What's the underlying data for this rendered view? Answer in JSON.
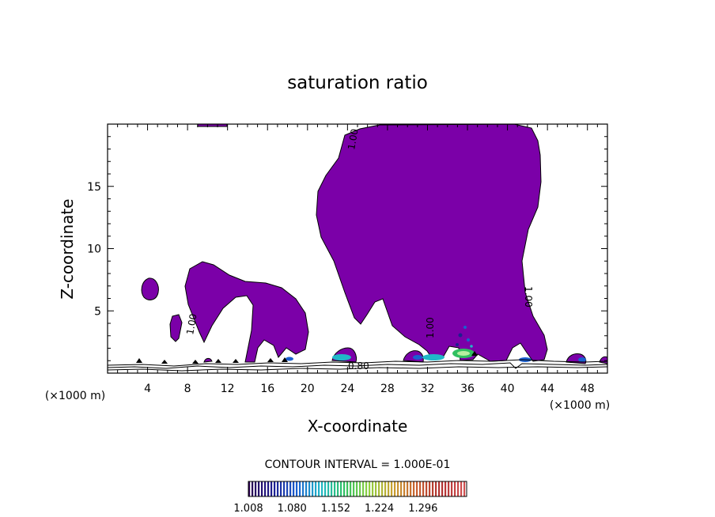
{
  "chart_data": {
    "type": "contour",
    "title": "saturation ratio",
    "xlabel": "X-coordinate",
    "ylabel": "Z-coordinate",
    "x_unit": "(×1000 m)",
    "y_unit": "(×1000 m)",
    "xlim": [
      0,
      50
    ],
    "ylim": [
      0,
      20
    ],
    "x_ticks": [
      4,
      8,
      12,
      16,
      20,
      24,
      28,
      32,
      36,
      40,
      44,
      48
    ],
    "y_ticks": [
      5,
      10,
      15
    ],
    "contour_interval_text": "CONTOUR INTERVAL = 1.000E-01",
    "contour_labels": [
      "1.00",
      "1.00",
      "1.00",
      "1.00",
      "0.80"
    ],
    "colorbar": {
      "ticks": [
        "1.008",
        "1.080",
        "1.152",
        "1.224",
        "1.296"
      ],
      "colors": [
        "#2a0050",
        "#1e1e90",
        "#1a60d0",
        "#20b8c8",
        "#30c060",
        "#90d040",
        "#c8a030",
        "#c86030",
        "#b03030",
        "#d05050"
      ]
    },
    "fill_color": "#7b00a8"
  }
}
